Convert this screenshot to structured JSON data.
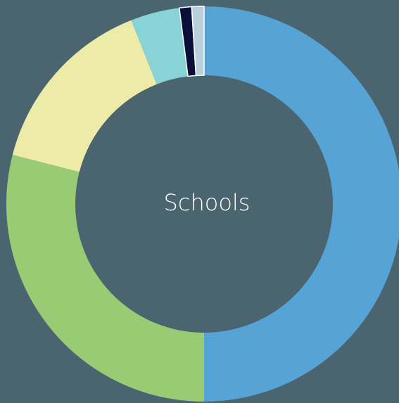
{
  "chart_data": {
    "type": "donut",
    "title": "Schools",
    "values": [
      50,
      29,
      15,
      4,
      1,
      1
    ],
    "colors": [
      "#56a3d6",
      "#98cb73",
      "#ececa8",
      "#88d3d6",
      "#0a0f3a",
      "#b9cfdc"
    ]
  }
}
